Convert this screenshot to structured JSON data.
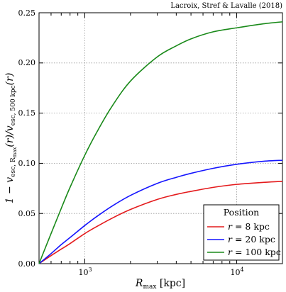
{
  "chart_data": {
    "type": "line",
    "credit": "Lacroix, Stref & Lavalle (2018)",
    "xlabel": "R_max [kpc]",
    "ylabel": "1 − v_esc, Rmax(r)/v_esc, 500 kpc(r)",
    "xscale": "log",
    "xlim": [
      500,
      20000
    ],
    "ylim": [
      0,
      0.25
    ],
    "yticks": [
      "0.00",
      "0.05",
      "0.10",
      "0.15",
      "0.20",
      "0.25"
    ],
    "xticks": [
      "10^3",
      "10^4"
    ],
    "grid": true,
    "legend": {
      "title": "Position",
      "placement": "lower-right"
    },
    "series": [
      {
        "name": "r = 8 kpc",
        "color": "#e41a1c",
        "x": [
          500,
          600,
          700,
          800,
          1000,
          1200,
          1500,
          2000,
          3000,
          4000,
          5000,
          7000,
          10000,
          15000,
          20000
        ],
        "y": [
          0.0,
          0.008,
          0.0145,
          0.02,
          0.03,
          0.037,
          0.045,
          0.054,
          0.064,
          0.069,
          0.072,
          0.076,
          0.079,
          0.081,
          0.082
        ]
      },
      {
        "name": "r = 20 kpc",
        "color": "#1515ff",
        "x": [
          500,
          600,
          700,
          800,
          1000,
          1200,
          1500,
          2000,
          3000,
          4000,
          5000,
          7000,
          10000,
          15000,
          20000
        ],
        "y": [
          0.0,
          0.01,
          0.019,
          0.026,
          0.038,
          0.047,
          0.057,
          0.068,
          0.08,
          0.086,
          0.09,
          0.095,
          0.099,
          0.102,
          0.103
        ]
      },
      {
        "name": "r = 100 kpc",
        "color": "#1a8a1a",
        "x": [
          500,
          600,
          700,
          800,
          1000,
          1200,
          1500,
          2000,
          3000,
          4000,
          5000,
          7000,
          10000,
          15000,
          20000
        ],
        "y": [
          0.0,
          0.03,
          0.055,
          0.076,
          0.108,
          0.131,
          0.156,
          0.182,
          0.206,
          0.217,
          0.224,
          0.231,
          0.235,
          0.239,
          0.241
        ]
      }
    ]
  }
}
